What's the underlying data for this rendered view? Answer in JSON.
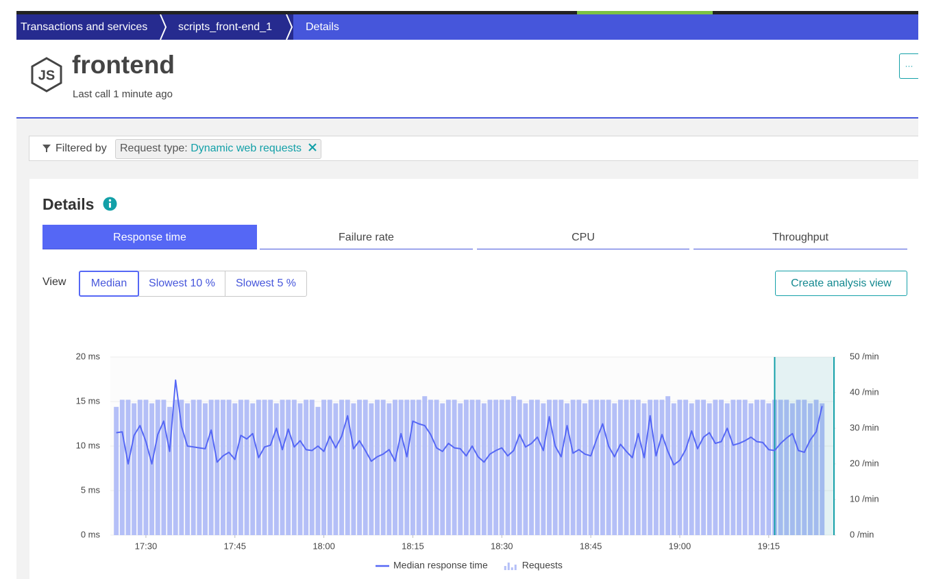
{
  "breadcrumbs": [
    "Transactions and services",
    "scripts_front-end_1",
    "Details"
  ],
  "header": {
    "logo": "JS",
    "title": "frontend",
    "subtitle": "Last call 1 minute ago",
    "menu": "···"
  },
  "filter": {
    "label": "Filtered by",
    "key": "Request type:",
    "value": "Dynamic web requests"
  },
  "section": {
    "title": "Details"
  },
  "tabs": [
    "Response time",
    "Failure rate",
    "CPU",
    "Throughput"
  ],
  "view": {
    "label": "View",
    "options": [
      "Median",
      "Slowest 10 %",
      "Slowest 5 %"
    ]
  },
  "button": "Create analysis view",
  "chart_data": {
    "type": "bar-line",
    "x": [
      "17:25",
      "17:26",
      "17:27",
      "17:28",
      "17:29",
      "17:30",
      "17:31",
      "17:32",
      "17:33",
      "17:34",
      "17:35",
      "17:36",
      "17:37",
      "17:38",
      "17:39",
      "17:40",
      "17:41",
      "17:42",
      "17:43",
      "17:44",
      "17:45",
      "17:46",
      "17:47",
      "17:48",
      "17:49",
      "17:50",
      "17:51",
      "17:52",
      "17:53",
      "17:54",
      "17:55",
      "17:56",
      "17:57",
      "17:58",
      "17:59",
      "18:00",
      "18:01",
      "18:02",
      "18:03",
      "18:04",
      "18:05",
      "18:06",
      "18:07",
      "18:08",
      "18:09",
      "18:10",
      "18:11",
      "18:12",
      "18:13",
      "18:14",
      "18:15",
      "18:16",
      "18:17",
      "18:18",
      "18:19",
      "18:20",
      "18:21",
      "18:22",
      "18:23",
      "18:24",
      "18:25",
      "18:26",
      "18:27",
      "18:28",
      "18:29",
      "18:30",
      "18:31",
      "18:32",
      "18:33",
      "18:34",
      "18:35",
      "18:36",
      "18:37",
      "18:38",
      "18:39",
      "18:40",
      "18:41",
      "18:42",
      "18:43",
      "18:44",
      "18:45",
      "18:46",
      "18:47",
      "18:48",
      "18:49",
      "18:50",
      "18:51",
      "18:52",
      "18:53",
      "18:54",
      "18:55",
      "18:56",
      "18:57",
      "18:58",
      "18:59",
      "19:00",
      "19:01",
      "19:02",
      "19:03",
      "19:04",
      "19:05",
      "19:06",
      "19:07",
      "19:08",
      "19:09",
      "19:10",
      "19:11",
      "19:12",
      "19:13",
      "19:14",
      "19:15",
      "19:16",
      "19:17",
      "19:18",
      "19:19",
      "19:20",
      "19:21",
      "19:22",
      "19:23",
      "19:24"
    ],
    "series": [
      {
        "name": "Median response time",
        "color": "#5567f5",
        "axis": "y",
        "values": [
          11.5,
          11.6,
          8.0,
          11.2,
          12.3,
          10.5,
          8.0,
          11.3,
          12.8,
          9.4,
          17.4,
          12.2,
          10.0,
          9.9,
          9.8,
          9.7,
          11.8,
          8.2,
          8.9,
          9.3,
          8.5,
          11.2,
          10.8,
          11.4,
          8.7,
          9.9,
          10.1,
          12.0,
          9.6,
          11.9,
          9.9,
          10.6,
          9.6,
          9.5,
          10.0,
          9.4,
          11.1,
          9.8,
          11.1,
          13.4,
          9.7,
          10.6,
          9.5,
          8.3,
          8.8,
          9.1,
          9.6,
          8.3,
          11.4,
          8.8,
          12.8,
          12.5,
          12.3,
          11.3,
          9.8,
          9.4,
          10.3,
          9.8,
          9.7,
          8.9,
          10.0,
          8.8,
          8.2,
          9.1,
          9.5,
          9.8,
          8.9,
          9.5,
          11.3,
          9.9,
          10.3,
          11.0,
          9.5,
          13.3,
          10.0,
          8.8,
          12.3,
          9.2,
          9.6,
          9.1,
          8.9,
          10.8,
          12.5,
          10.0,
          8.8,
          10.2,
          9.4,
          8.7,
          11.4,
          8.7,
          13.4,
          8.9,
          11.3,
          9.4,
          7.9,
          8.4,
          9.6,
          11.7,
          9.7,
          11.0,
          11.5,
          10.3,
          10.5,
          12.0,
          10.1,
          10.3,
          10.6,
          11.0,
          10.5,
          10.4,
          9.6,
          9.5,
          10.3,
          10.9,
          11.4,
          9.5,
          9.3,
          10.7,
          11.6,
          14.5
        ]
      },
      {
        "name": "Requests",
        "color": "#b4bff7",
        "axis": "y2",
        "values": [
          36,
          38,
          38,
          37,
          38,
          38,
          37,
          38,
          38,
          36,
          38,
          38,
          37,
          38,
          38,
          37,
          38,
          38,
          38,
          38,
          37,
          38,
          38,
          37,
          38,
          38,
          38,
          37,
          38,
          38,
          38,
          37,
          38,
          38,
          36,
          38,
          38,
          37,
          38,
          38,
          37,
          38,
          38,
          37,
          38,
          38,
          37,
          38,
          38,
          38,
          38,
          38,
          39,
          38,
          38,
          37,
          38,
          38,
          37,
          38,
          38,
          38,
          37,
          38,
          38,
          38,
          38,
          39,
          38,
          37,
          38,
          38,
          37,
          38,
          38,
          38,
          37,
          38,
          38,
          37,
          38,
          38,
          38,
          38,
          37,
          38,
          38,
          38,
          38,
          37,
          38,
          38,
          38,
          39,
          37,
          38,
          38,
          37,
          38,
          38,
          37,
          38,
          38,
          37,
          38,
          38,
          38,
          37,
          38,
          38,
          37,
          38,
          38,
          38,
          37,
          38,
          38,
          37,
          38,
          37
        ]
      }
    ],
    "xlim": [
      "17:24",
      "19:26"
    ],
    "xticks": [
      "17:30",
      "17:45",
      "18:00",
      "18:15",
      "18:30",
      "18:45",
      "19:00",
      "19:15"
    ],
    "ylim": [
      0,
      20
    ],
    "yticks": [
      {
        "value": 0,
        "label": "0 ms"
      },
      {
        "value": 5,
        "label": "5 ms"
      },
      {
        "value": 10,
        "label": "10 ms"
      },
      {
        "value": 15,
        "label": "15 ms"
      },
      {
        "value": 20,
        "label": "20 ms"
      }
    ],
    "y2lim": [
      0,
      50
    ],
    "y2ticks": [
      {
        "value": 0,
        "label": "0 /min"
      },
      {
        "value": 10,
        "label": "10 /min"
      },
      {
        "value": 20,
        "label": "20 /min"
      },
      {
        "value": 30,
        "label": "30 /min"
      },
      {
        "value": 40,
        "label": "40 /min"
      },
      {
        "value": 50,
        "label": "50 /min"
      }
    ],
    "highlight": [
      "19:16",
      "19:26"
    ],
    "grid": true,
    "legend": "bottom"
  }
}
